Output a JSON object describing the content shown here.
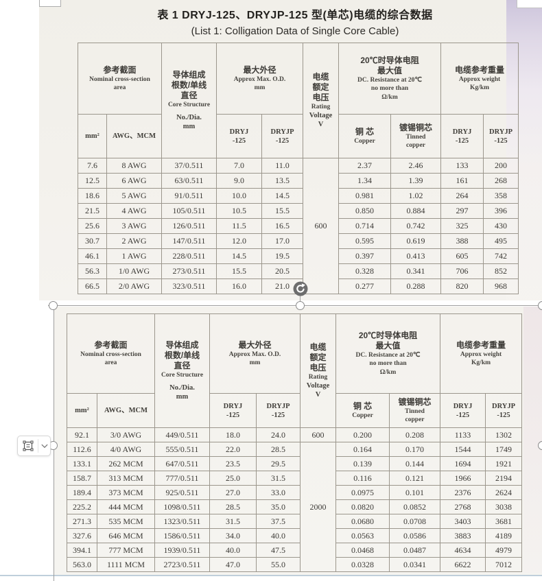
{
  "page": {
    "title_cn": "表 1  DRYJ-125、DRYJP-125 型(单芯)电缆的综合数据",
    "title_en": "(List 1: Colligation Data of Single Core Cable)"
  },
  "table_header": {
    "area_cn": "参考截面",
    "area_en1": "Nominal cross-section",
    "area_en2": "area",
    "structure_cn1": "导体组成",
    "structure_cn2": "根数/单线",
    "structure_cn3": "直径",
    "structure_en": "Core Structure",
    "structure_sub1": "No./Dia.",
    "structure_sub2": "mm",
    "od_cn": "最大外径",
    "od_en": "Approx Max. O.D.",
    "od_unit": "mm",
    "voltage_cn1": "电缆",
    "voltage_cn2": "额定",
    "voltage_cn3": "电压",
    "voltage_en1": "Rating",
    "voltage_en2": "Voltage",
    "voltage_en3": "V",
    "resistance_cn1": "20℃时导体电阻",
    "resistance_cn2": "最大值",
    "resistance_en1": "DC. Resistance at 20℃",
    "resistance_en2": "no more than",
    "resistance_en3": "Ω/km",
    "weight_cn": "电缆参考重量",
    "weight_en1": "Approx weight",
    "weight_en2": "Kg/km",
    "col_mm2": "mm²",
    "col_awg": "AWG、MCM",
    "col_dryj1": "DRYJ",
    "col_dryj2": "-125",
    "col_dryjp1": "DRYJP",
    "col_dryjp2": "-125",
    "col_copper_cn": "铜 芯",
    "col_copper_en": "Copper",
    "col_tinned_cn": "镀锡铜芯",
    "col_tinned_en1": "Tinned",
    "col_tinned_en2": "copper"
  },
  "table1": {
    "voltage": "600",
    "rows": [
      [
        "7.6",
        "8 AWG",
        "37/0.511",
        "7.0",
        "11.0",
        "2.37",
        "2.46",
        "133",
        "200"
      ],
      [
        "12.5",
        "6 AWG",
        "63/0.511",
        "9.0",
        "13.5",
        "1.34",
        "1.39",
        "161",
        "268"
      ],
      [
        "18.6",
        "5 AWG",
        "91/0.511",
        "10.0",
        "14.5",
        "0.981",
        "1.02",
        "264",
        "358"
      ],
      [
        "21.5",
        "4 AWG",
        "105/0.511",
        "10.5",
        "15.5",
        "0.850",
        "0.884",
        "297",
        "396"
      ],
      [
        "25.6",
        "3 AWG",
        "126/0.511",
        "11.5",
        "16.5",
        "0.714",
        "0.742",
        "325",
        "430"
      ],
      [
        "30.7",
        "2 AWG",
        "147/0.511",
        "12.0",
        "17.0",
        "0.595",
        "0.619",
        "388",
        "495"
      ],
      [
        "46.1",
        "1 AWG",
        "228/0.511",
        "14.5",
        "19.5",
        "0.397",
        "0.413",
        "605",
        "742"
      ],
      [
        "56.3",
        "1/0 AWG",
        "273/0.511",
        "15.5",
        "20.5",
        "0.328",
        "0.341",
        "706",
        "852"
      ],
      [
        "66.5",
        "2/0 AWG",
        "323/0.511",
        "16.0",
        "21.0",
        "0.277",
        "0.288",
        "820",
        "968"
      ]
    ]
  },
  "table2": {
    "voltage_600": "600",
    "voltage_2000": "2000",
    "rows": [
      [
        "92.1",
        "3/0 AWG",
        "449/0.511",
        "18.0",
        "24.0",
        "0.200",
        "0.208",
        "1133",
        "1302"
      ],
      [
        "112.6",
        "4/0 AWG",
        "555/0.511",
        "22.0",
        "28.5",
        "0.164",
        "0.170",
        "1544",
        "1749"
      ],
      [
        "133.1",
        "262 MCM",
        "647/0.511",
        "23.5",
        "29.5",
        "0.139",
        "0.144",
        "1694",
        "1921"
      ],
      [
        "158.7",
        "313 MCM",
        "777/0.511",
        "25.0",
        "31.5",
        "0.116",
        "0.121",
        "1966",
        "2194"
      ],
      [
        "189.4",
        "373 MCM",
        "925/0.511",
        "27.0",
        "33.0",
        "0.0975",
        "0.101",
        "2376",
        "2624"
      ],
      [
        "225.2",
        "444 MCM",
        "1098/0.511",
        "28.5",
        "35.0",
        "0.0820",
        "0.0852",
        "2768",
        "3038"
      ],
      [
        "271.3",
        "535 MCM",
        "1323/0.511",
        "31.5",
        "37.5",
        "0.0680",
        "0.0708",
        "3403",
        "3681"
      ],
      [
        "327.6",
        "646 MCM",
        "1586/0.511",
        "34.0",
        "40.0",
        "0.0563",
        "0.0586",
        "3883",
        "4189"
      ],
      [
        "394.1",
        "777 MCM",
        "1939/0.511",
        "40.0",
        "47.5",
        "0.0468",
        "0.0487",
        "4634",
        "4979"
      ],
      [
        "563.0",
        "1111 MCM",
        "2723/0.511",
        "47.0",
        "55.0",
        "0.0328",
        "0.0341",
        "6622",
        "7012"
      ]
    ]
  },
  "ui": {
    "icons": {
      "rotate_handle": "rotate-clockwise ↻",
      "selection_handle": "circle-handle ○",
      "element_select": "selection-frame ▣",
      "chevron_down": "⌄"
    },
    "colors": {
      "selection_line": "#9e9e9e",
      "rotate_button": "#6d6d6d",
      "scan_paper": "#f3f1ec",
      "scan_edge_lavender": "#cdc5dc",
      "bottom_rule": "#bfcfdb",
      "table_line": "#9b968c"
    }
  }
}
